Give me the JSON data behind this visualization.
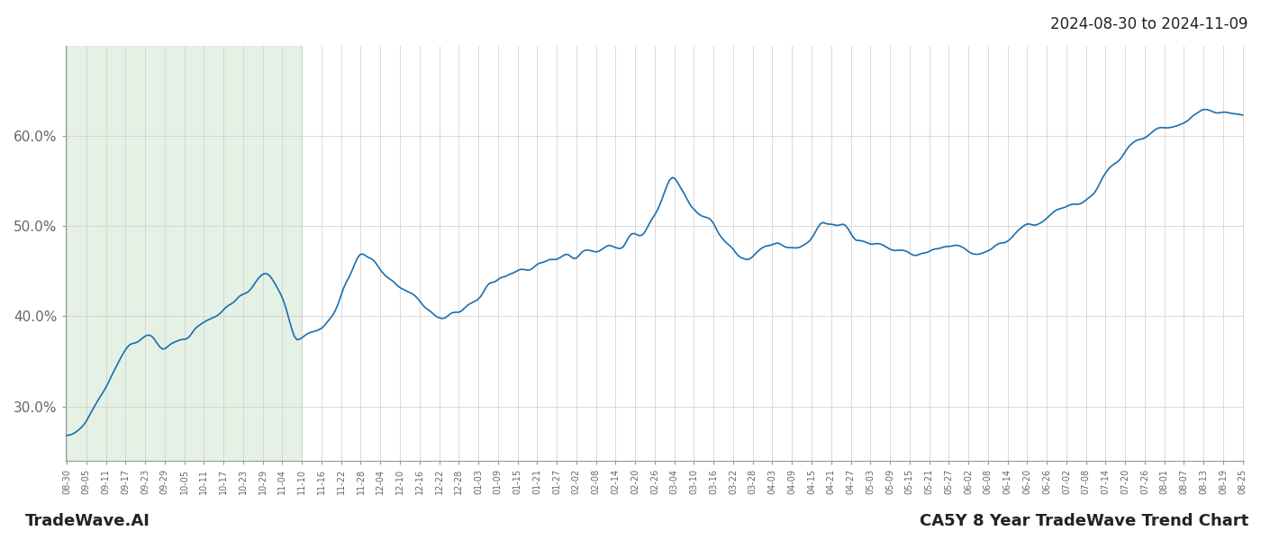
{
  "title_date": "2024-08-30 to 2024-11-09",
  "footer_left": "TradeWave.AI",
  "footer_right": "CA5Y 8 Year TradeWave Trend Chart",
  "line_color": "#1a6faf",
  "line_width": 1.2,
  "bg_color": "#ffffff",
  "highlight_color": "#d6ead6",
  "highlight_alpha": 0.65,
  "grid_color": "#cccccc",
  "ylabel_color": "#666666",
  "ylim": [
    24,
    70
  ],
  "yticks": [
    30.0,
    40.0,
    50.0,
    60.0
  ],
  "highlight_start_date": "08-30",
  "highlight_end_date": "11-10",
  "x_tick_labels": [
    "08-30",
    "09-05",
    "09-11",
    "09-17",
    "09-23",
    "09-29",
    "10-05",
    "10-11",
    "10-17",
    "10-23",
    "10-29",
    "11-04",
    "11-10",
    "11-16",
    "11-22",
    "11-28",
    "12-04",
    "12-10",
    "12-16",
    "12-22",
    "12-28",
    "01-03",
    "01-09",
    "01-15",
    "01-21",
    "01-27",
    "02-02",
    "02-08",
    "02-14",
    "02-20",
    "02-26",
    "03-04",
    "03-10",
    "03-16",
    "03-22",
    "03-28",
    "04-03",
    "04-09",
    "04-15",
    "04-21",
    "04-27",
    "05-03",
    "05-09",
    "05-15",
    "05-21",
    "05-27",
    "06-02",
    "06-08",
    "06-14",
    "06-20",
    "06-26",
    "07-02",
    "07-08",
    "07-14",
    "07-20",
    "07-26",
    "08-01",
    "08-07",
    "08-13",
    "08-19",
    "08-25"
  ]
}
